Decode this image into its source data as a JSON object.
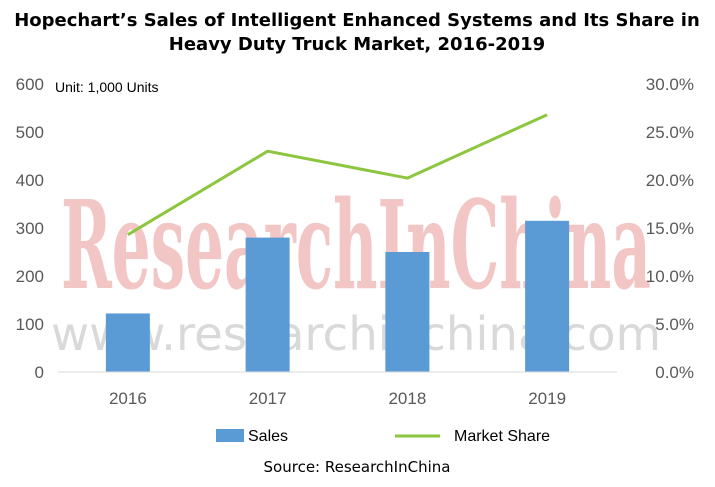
{
  "chart_data": {
    "type": "bar",
    "title_line1": "Hopechart’s Sales of Intelligent Enhanced Systems and Its Share in",
    "title_line2": "Heavy Duty Truck Market, 2016-2019",
    "unit": "Unit: 1,000 Units",
    "categories": [
      "2016",
      "2017",
      "2018",
      "2019"
    ],
    "series": [
      {
        "name": "Sales",
        "type": "bar",
        "axis": "left",
        "values": [
          122,
          280,
          250,
          315
        ],
        "color": "#5b9bd5"
      },
      {
        "name": "Market Share",
        "type": "line",
        "axis": "right",
        "values": [
          0.143,
          0.23,
          0.202,
          0.268
        ],
        "color": "#8cc63f"
      }
    ],
    "y_left": {
      "min": 0,
      "max": 600,
      "ticks": [
        "0",
        "100",
        "200",
        "300",
        "400",
        "500",
        "600"
      ]
    },
    "y_right": {
      "min": 0,
      "max": 0.3,
      "ticks": [
        "0.0%",
        "5.0%",
        "10.0%",
        "15.0%",
        "20.0%",
        "25.0%",
        "30.0%"
      ]
    },
    "legend": {
      "position": "bottom",
      "items": [
        "Sales",
        "Market Share"
      ]
    },
    "grid": false
  },
  "watermark": {
    "big": "ResearchInChina",
    "small": "www.researchinchina.com"
  },
  "source": "Source: ResearchInChina"
}
